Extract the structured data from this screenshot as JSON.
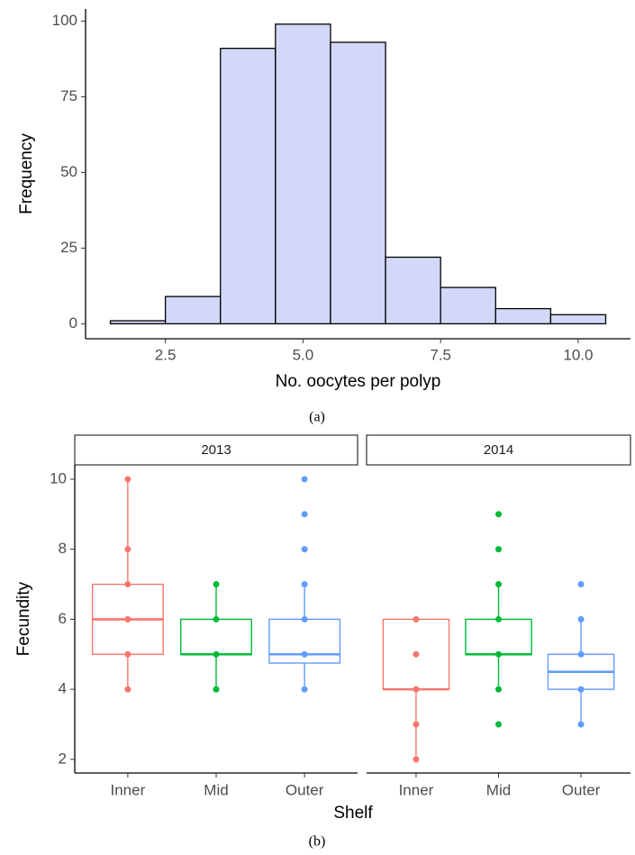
{
  "chart_data": [
    {
      "type": "histogram",
      "xlabel": "No. oocytes per polyp",
      "ylabel": "Frequency",
      "caption": "(a)",
      "bins": [
        1.5,
        2.5,
        3.5,
        4.5,
        5.5,
        6.5,
        7.5,
        8.5,
        9.5,
        10.5
      ],
      "values": [
        1,
        9,
        91,
        99,
        93,
        22,
        12,
        5,
        3
      ],
      "color": "#d3d8f8",
      "edgecolor": "#000000",
      "xlim": [
        1.05,
        10.95
      ],
      "xticks": [
        2.5,
        {
          "value": 5,
          "label": "5.0"
        },
        7.5,
        {
          "value": 10,
          "label": "10.0"
        }
      ],
      "ylim": [
        -4.95,
        104
      ],
      "yticks": [
        0,
        25,
        50,
        75,
        100
      ],
      "grid": false
    },
    {
      "type": "box",
      "xlabel": "Shelf",
      "ylabel": "Fecundity",
      "caption": "(b)",
      "categories": [
        "Inner",
        "Mid",
        "Outer"
      ],
      "colors": [
        "#F8766D",
        "#00BA38",
        "#619CFF"
      ],
      "ylim": [
        1.61,
        10.41
      ],
      "yticks": [
        2,
        4,
        6,
        8,
        10
      ],
      "grid": false,
      "facets": [
        {
          "label": "2013",
          "boxes": [
            {
              "whisker_low": 4,
              "q1": 5,
              "median": 6,
              "q3": 7,
              "whisker_high": 10,
              "points": [
                4,
                5,
                6,
                7,
                8,
                10
              ]
            },
            {
              "whisker_low": 4,
              "q1": 5,
              "median": 5,
              "q3": 6,
              "whisker_high": 7,
              "points": [
                4,
                5,
                6,
                7
              ]
            },
            {
              "whisker_low": 4,
              "q1": 4.75,
              "median": 5,
              "q3": 6,
              "whisker_high": 7,
              "points": [
                4,
                5,
                6,
                7,
                8,
                9,
                10
              ]
            }
          ]
        },
        {
          "label": "2014",
          "boxes": [
            {
              "whisker_low": 2,
              "q1": 4,
              "median": 4,
              "q3": 6,
              "whisker_high": 6,
              "points": [
                2,
                3,
                4,
                5,
                6
              ]
            },
            {
              "whisker_low": 4,
              "q1": 5,
              "median": 5,
              "q3": 6,
              "whisker_high": 7,
              "points": [
                3,
                4,
                5,
                6,
                7,
                8,
                9
              ]
            },
            {
              "whisker_low": 3,
              "q1": 4,
              "median": 4.5,
              "q3": 5,
              "whisker_high": 6,
              "points": [
                3,
                4,
                5,
                6,
                7
              ]
            }
          ]
        }
      ]
    }
  ]
}
